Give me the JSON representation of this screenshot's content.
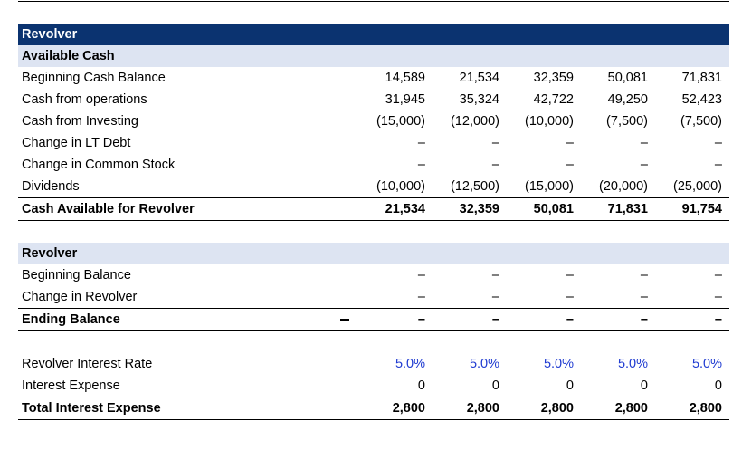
{
  "title": "Revolver",
  "available_cash": {
    "header": "Available Cash",
    "rows": [
      {
        "label": "Beginning Cash Balance",
        "values": [
          "14,589",
          "21,534",
          "32,359",
          "50,081",
          "71,831"
        ]
      },
      {
        "label": "Cash from operations",
        "values": [
          "31,945",
          "35,324",
          "42,722",
          "49,250",
          "52,423"
        ]
      },
      {
        "label": "Cash from Investing",
        "values": [
          "(15,000)",
          "(12,000)",
          "(10,000)",
          "(7,500)",
          "(7,500)"
        ]
      },
      {
        "label": "Change in LT Debt",
        "values": [
          "–",
          "–",
          "–",
          "–",
          "–"
        ]
      },
      {
        "label": "Change in Common Stock",
        "values": [
          "–",
          "–",
          "–",
          "–",
          "–"
        ]
      },
      {
        "label": "Dividends",
        "values": [
          "(10,000)",
          "(12,500)",
          "(15,000)",
          "(20,000)",
          "(25,000)"
        ]
      }
    ],
    "total": {
      "label": "Cash Available for Revolver",
      "values": [
        "21,534",
        "32,359",
        "50,081",
        "71,831",
        "91,754"
      ]
    }
  },
  "revolver": {
    "header": "Revolver",
    "rows": [
      {
        "label": "Beginning Balance",
        "values": [
          "–",
          "–",
          "–",
          "–",
          "–"
        ]
      },
      {
        "label": "Change in Revolver",
        "values": [
          "–",
          "–",
          "–",
          "–",
          "–"
        ]
      }
    ],
    "total": {
      "label": "Ending Balance",
      "values": [
        "–",
        "–",
        "–",
        "–",
        "–"
      ]
    }
  },
  "interest": {
    "rate": {
      "label": "Revolver Interest Rate",
      "values": [
        "5.0%",
        "5.0%",
        "5.0%",
        "5.0%",
        "5.0%"
      ]
    },
    "expense": {
      "label": "Interest Expense",
      "values": [
        "0",
        "0",
        "0",
        "0",
        "0"
      ]
    },
    "total": {
      "label": "Total Interest Expense",
      "values": [
        "2,800",
        "2,800",
        "2,800",
        "2,800",
        "2,800"
      ]
    }
  },
  "colors": {
    "title_bar": "#0b3370",
    "sub_bar": "#dde4f2",
    "input_blue": "#1f3bd1"
  }
}
